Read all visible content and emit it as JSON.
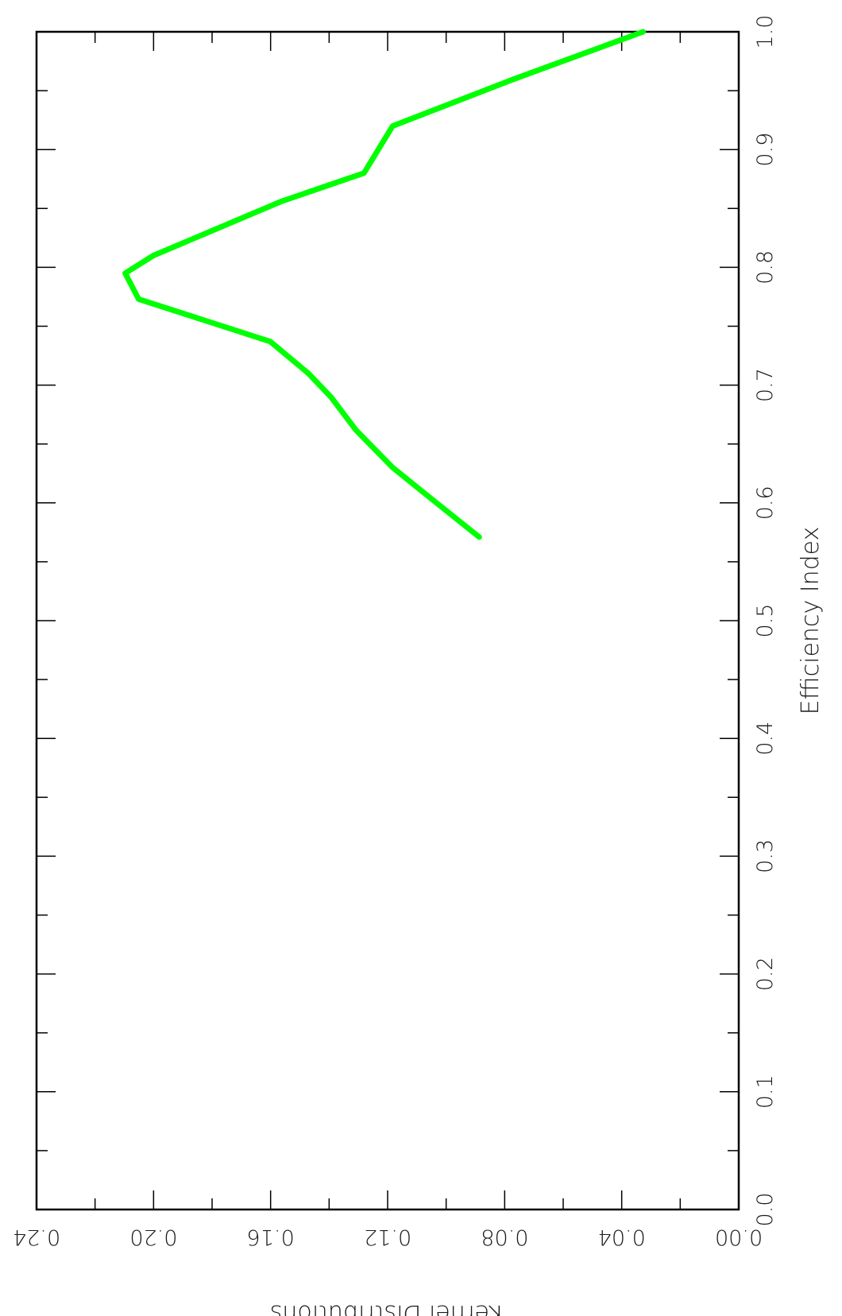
{
  "chart_data": {
    "type": "line",
    "xlabel": "Efficiency Index",
    "ylabel": "Kernel Distributions",
    "xlim": [
      0.0,
      1.0
    ],
    "ylim": [
      0.0,
      0.24
    ],
    "x_ticks": [
      "0.0",
      "0.1",
      "0.2",
      "0.3",
      "0.4",
      "0.5",
      "0.6",
      "0.7",
      "0.8",
      "0.9",
      "1.0"
    ],
    "y_ticks": [
      "0.00",
      "0.04",
      "0.08",
      "0.12",
      "0.16",
      "0.20",
      "0.24"
    ],
    "grid": false,
    "series": [
      {
        "color": "#00ff00",
        "x": [
          0.571,
          0.6,
          0.63,
          0.662,
          0.69,
          0.71,
          0.737,
          0.773,
          0.795,
          0.81,
          0.856,
          0.88,
          0.92,
          0.96,
          1.0
        ],
        "y": [
          0.0887,
          0.1033,
          0.1183,
          0.1309,
          0.1394,
          0.1471,
          0.1601,
          0.2051,
          0.2097,
          0.2001,
          0.1563,
          0.1281,
          0.1183,
          0.0767,
          0.0327
        ]
      }
    ]
  }
}
